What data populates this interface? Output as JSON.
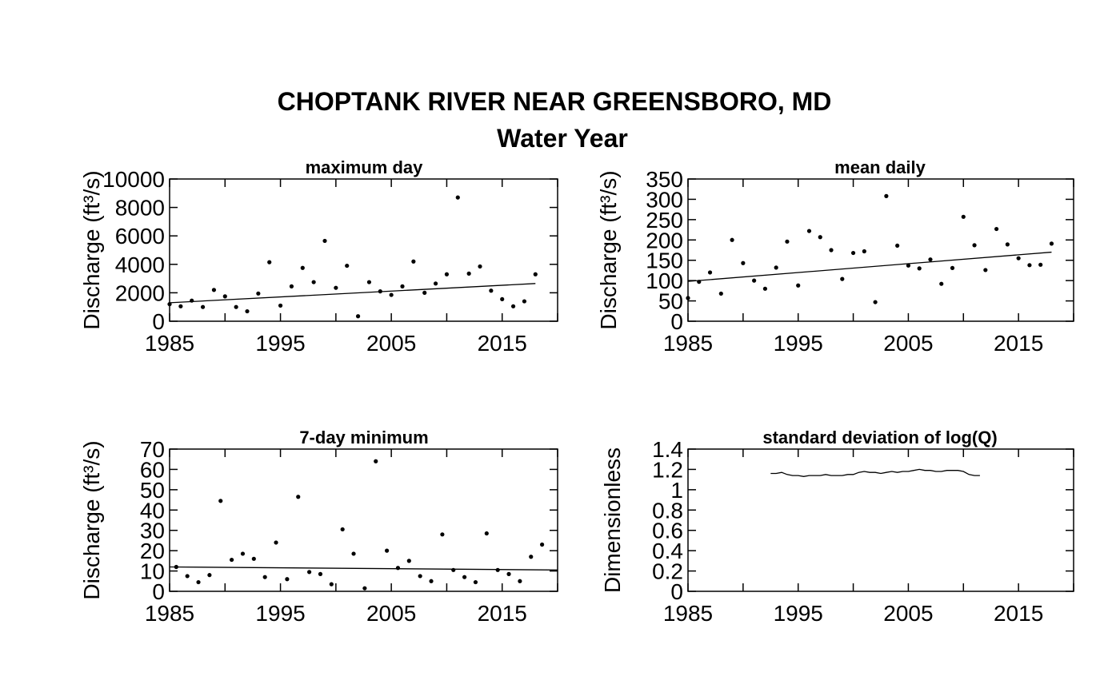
{
  "figure": {
    "title": "CHOPTANK RIVER NEAR GREENSBORO, MD",
    "subtitle": "Water Year"
  },
  "chart_data": [
    {
      "type": "scatter",
      "title": "maximum day",
      "ylabel": "Discharge (ft³/s)",
      "xlabel": "",
      "xlim": [
        1985,
        2020
      ],
      "ylim": [
        0,
        10000
      ],
      "x_ticks": [
        "1985",
        "1995",
        "2005",
        "2015"
      ],
      "y_ticks": [
        "0",
        "2000",
        "4000",
        "6000",
        "8000",
        "10000"
      ],
      "points": {
        "x": [
          1985,
          1986,
          1987,
          1988,
          1989,
          1990,
          1991,
          1992,
          1993,
          1994,
          1995,
          1996,
          1997,
          1998,
          1999,
          2000,
          2001,
          2002,
          2003,
          2004,
          2005,
          2006,
          2007,
          2008,
          2009,
          2010,
          2011,
          2012,
          2013,
          2014,
          2015,
          2016,
          2017,
          2018
        ],
        "y": [
          1200,
          1050,
          1450,
          1000,
          2200,
          1750,
          1000,
          700,
          1950,
          4150,
          1100,
          2450,
          3750,
          2750,
          5650,
          2350,
          3900,
          350,
          2750,
          2100,
          1850,
          2450,
          4200,
          2000,
          2650,
          3300,
          8700,
          3350,
          3850,
          2150,
          1550,
          1050,
          1400,
          3300
        ]
      },
      "trend": {
        "x": [
          1985,
          2018
        ],
        "y": [
          1300,
          2650
        ]
      }
    },
    {
      "type": "scatter",
      "title": "mean daily",
      "ylabel": "Discharge (ft³/s)",
      "xlabel": "",
      "xlim": [
        1985,
        2020
      ],
      "ylim": [
        0,
        350
      ],
      "x_ticks": [
        "1985",
        "1995",
        "2005",
        "2015"
      ],
      "y_ticks": [
        "0",
        "50",
        "100",
        "150",
        "200",
        "250",
        "300",
        "350"
      ],
      "points": {
        "x": [
          1985,
          1986,
          1987,
          1988,
          1989,
          1990,
          1991,
          1992,
          1993,
          1994,
          1995,
          1996,
          1997,
          1998,
          1999,
          2000,
          2001,
          2002,
          2003,
          2004,
          2005,
          2006,
          2007,
          2008,
          2009,
          2010,
          2011,
          2012,
          2013,
          2014,
          2015,
          2016,
          2017,
          2018
        ],
        "y": [
          57,
          97,
          120,
          68,
          200,
          143,
          100,
          80,
          132,
          196,
          88,
          222,
          207,
          175,
          104,
          168,
          172,
          47,
          308,
          186,
          137,
          130,
          152,
          92,
          131,
          257,
          187,
          126,
          227,
          189,
          155,
          138,
          139,
          191
        ]
      },
      "trend": {
        "x": [
          1985,
          2018
        ],
        "y": [
          98,
          170
        ]
      }
    },
    {
      "type": "scatter",
      "title": "7-day minimum",
      "ylabel": "Discharge (ft³/s)",
      "xlabel": "",
      "xlim": [
        1985,
        2020
      ],
      "ylim": [
        0,
        70
      ],
      "x_ticks": [
        "1985",
        "1995",
        "2005",
        "2015"
      ],
      "y_ticks": [
        "0",
        "10",
        "20",
        "30",
        "40",
        "50",
        "60",
        "70"
      ],
      "points": {
        "x": [
          1985.6,
          1986.6,
          1987.6,
          1988.6,
          1989.6,
          1990.6,
          1991.6,
          1992.6,
          1993.6,
          1994.6,
          1995.6,
          1996.6,
          1997.6,
          1998.6,
          1999.6,
          2000.6,
          2001.6,
          2002.6,
          2003.6,
          2004.6,
          2005.6,
          2006.6,
          2007.6,
          2008.6,
          2009.6,
          2010.6,
          2011.6,
          2012.6,
          2013.6,
          2014.6,
          2015.6,
          2016.6,
          2017.6,
          2018.6
        ],
        "y": [
          12,
          7.5,
          4.5,
          8,
          44.5,
          15.5,
          18.5,
          16,
          7,
          24,
          6,
          46.5,
          9.5,
          8.5,
          3.5,
          30.5,
          18.5,
          1.5,
          64,
          20,
          11.5,
          15,
          7.5,
          5,
          28,
          10.5,
          7,
          4.5,
          28.5,
          10.5,
          8.5,
          5,
          17,
          23
        ]
      },
      "trend": {
        "x": [
          1985,
          2020
        ],
        "y": [
          12,
          10.5
        ]
      }
    },
    {
      "type": "line",
      "title": "standard deviation of log(Q)",
      "ylabel": "Dimensionless",
      "xlabel": "",
      "xlim": [
        1985,
        2020
      ],
      "ylim": [
        0,
        1.4
      ],
      "x_ticks": [
        "1985",
        "1995",
        "2005",
        "2015"
      ],
      "y_ticks": [
        "0",
        "0.2",
        "0.4",
        "0.6",
        "0.8",
        "1",
        "1.2",
        "1.4"
      ],
      "series": [
        {
          "x": [
            1992.5,
            1993.0,
            1993.5,
            1994.0,
            1994.5,
            1995.0,
            1995.5,
            1996.0,
            1996.5,
            1997.0,
            1997.5,
            1998.0,
            1998.5,
            1999.0,
            1999.5,
            2000.0,
            2000.5,
            2001.0,
            2001.5,
            2002.0,
            2002.5,
            2003.0,
            2003.5,
            2004.0,
            2004.5,
            2005.0,
            2005.5,
            2006.0,
            2006.5,
            2007.0,
            2007.5,
            2008.0,
            2008.5,
            2009.0,
            2009.5,
            2010.0,
            2010.5,
            2011.0,
            2011.5
          ],
          "y": [
            1.16,
            1.16,
            1.17,
            1.15,
            1.14,
            1.14,
            1.13,
            1.14,
            1.14,
            1.14,
            1.15,
            1.14,
            1.14,
            1.14,
            1.15,
            1.15,
            1.17,
            1.18,
            1.17,
            1.17,
            1.16,
            1.17,
            1.18,
            1.17,
            1.18,
            1.18,
            1.19,
            1.2,
            1.19,
            1.19,
            1.18,
            1.18,
            1.19,
            1.19,
            1.19,
            1.18,
            1.15,
            1.14,
            1.14
          ]
        }
      ]
    }
  ]
}
